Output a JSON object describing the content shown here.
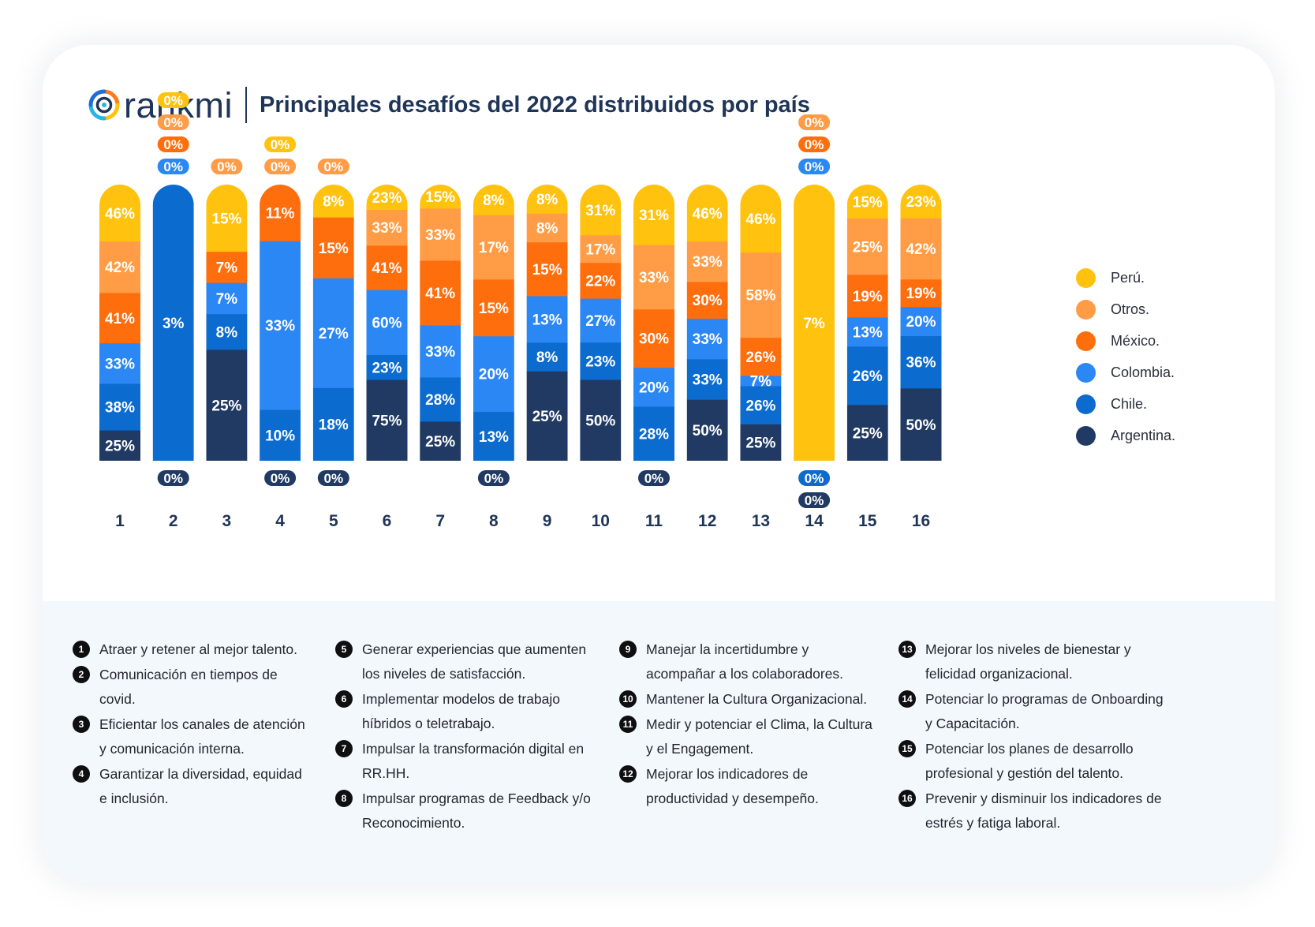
{
  "header": {
    "logo_text": "rankmi",
    "title": "Principales desafíos del 2022 distribuidos por país"
  },
  "colors": {
    "Perú.": "#ffc20e",
    "Otros.": "#ff9c45",
    "México.": "#ff6e0d",
    "Colombia.": "#2b87f4",
    "Chile.": "#0b6bcf",
    "Argentina.": "#213a63"
  },
  "legend": [
    "Perú.",
    "Otros.",
    "México.",
    "Colombia.",
    "Chile.",
    "Argentina."
  ],
  "chart_data": {
    "type": "bar",
    "stacked": true,
    "categories": [
      "1",
      "2",
      "3",
      "4",
      "5",
      "6",
      "7",
      "8",
      "9",
      "10",
      "11",
      "12",
      "13",
      "14",
      "15",
      "16"
    ],
    "series": [
      {
        "name": "Argentina.",
        "values": [
          25,
          0,
          25,
          0,
          0,
          75,
          25,
          0,
          25,
          50,
          0,
          50,
          25,
          0,
          25,
          50
        ]
      },
      {
        "name": "Chile.",
        "values": [
          38,
          3,
          8,
          10,
          18,
          23,
          28,
          13,
          8,
          23,
          28,
          33,
          26,
          0,
          26,
          36
        ]
      },
      {
        "name": "Colombia.",
        "values": [
          33,
          0,
          7,
          33,
          27,
          60,
          33,
          20,
          13,
          27,
          20,
          33,
          7,
          0,
          13,
          20
        ]
      },
      {
        "name": "México.",
        "values": [
          41,
          0,
          7,
          11,
          15,
          41,
          41,
          15,
          15,
          22,
          30,
          30,
          26,
          0,
          19,
          19
        ]
      },
      {
        "name": "Otros.",
        "values": [
          42,
          0,
          0,
          0,
          0,
          33,
          33,
          17,
          8,
          17,
          33,
          33,
          58,
          0,
          25,
          42
        ]
      },
      {
        "name": "Perú.",
        "values": [
          46,
          0,
          15,
          0,
          8,
          23,
          15,
          8,
          8,
          31,
          31,
          46,
          46,
          7,
          15,
          23
        ]
      }
    ],
    "value_suffix": "%",
    "grid": false,
    "legend_position": "right"
  },
  "notes": [
    [
      "Atraer y retener al mejor talento.",
      "Comunicación en tiempos de covid.",
      "Eficientar los canales de atención y comunicación interna.",
      "Garantizar la diversidad, equidad e inclusión."
    ],
    [
      "Generar experiencias que aumenten los niveles de satisfacción.",
      "Implementar modelos de trabajo híbridos o teletrabajo.",
      "Impulsar la transformación digital en RR.HH.",
      "Impulsar programas de Feedback y/o Reconocimiento."
    ],
    [
      "Manejar la incertidumbre y acompañar a los colaboradores.",
      "Mantener la Cultura Organizacional.",
      "Medir y potenciar el Clima, la Cultura y el Engagement.",
      "Mejorar los indicadores de productividad y desempeño."
    ],
    [
      "Mejorar los niveles de bienestar y felicidad organizacional.",
      "Potenciar lo programas de Onboarding y Capacitación.",
      "Potenciar los planes de desarrollo profesional y gestión del talento.",
      "Prevenir y disminuir los indicadores de estrés y fatiga laboral."
    ]
  ]
}
